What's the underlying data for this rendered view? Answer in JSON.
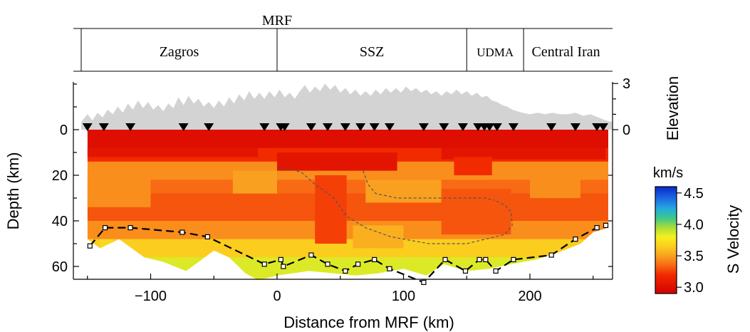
{
  "top_label": "MRF",
  "provinces": [
    {
      "name": "Zagros",
      "from": -150,
      "to": 0
    },
    {
      "name": "SSZ",
      "from": 0,
      "to": 150
    },
    {
      "name": "UDMA",
      "from": 150,
      "to": 195
    },
    {
      "name": "Central Iran",
      "from": 195,
      "to": 262
    }
  ],
  "chart_data": {
    "type": "heatmap",
    "xlabel": "Distance from MRF (km)",
    "ylabel": "Depth (km)",
    "right_label": "Elevation",
    "xlim": [
      -155,
      265
    ],
    "ylim": [
      70,
      -35
    ],
    "x_ticks": [
      {
        "v": -100,
        "label": "−100"
      },
      {
        "v": 0,
        "label": "0"
      },
      {
        "v": 100,
        "label": "100"
      },
      {
        "v": 200,
        "label": "200"
      }
    ],
    "y_ticks": [
      {
        "v": 0,
        "label": "0"
      },
      {
        "v": 20,
        "label": "20"
      },
      {
        "v": 40,
        "label": "40"
      },
      {
        "v": 60,
        "label": "60"
      }
    ],
    "elevation_ticks": [
      {
        "v": 3,
        "label": "3"
      },
      {
        "v": 0,
        "label": "0"
      }
    ],
    "colorbar": {
      "unit": "km/s",
      "label": "S Velocity",
      "range": [
        2.9,
        4.6
      ],
      "ticks": [
        {
          "v": 3.0,
          "label": "3.0"
        },
        {
          "v": 3.5,
          "label": "3.5"
        },
        {
          "v": 4.0,
          "label": "4.0"
        },
        {
          "v": 4.5,
          "label": "4.5"
        }
      ],
      "stops": [
        {
          "v": 2.9,
          "color": "#d40000"
        },
        {
          "v": 3.2,
          "color": "#f22a00"
        },
        {
          "v": 3.35,
          "color": "#f86a14"
        },
        {
          "v": 3.5,
          "color": "#f9a020"
        },
        {
          "v": 3.65,
          "color": "#fbcd1e"
        },
        {
          "v": 3.8,
          "color": "#f6f01e"
        },
        {
          "v": 3.95,
          "color": "#a8dc3a"
        },
        {
          "v": 4.1,
          "color": "#3cc88c"
        },
        {
          "v": 4.25,
          "color": "#24aadc"
        },
        {
          "v": 4.4,
          "color": "#1e6ee6"
        },
        {
          "v": 4.6,
          "color": "#0a28c8"
        }
      ]
    },
    "velocity_layers": [
      {
        "top": 0,
        "bottom": 8,
        "v": 3.0
      },
      {
        "top": 8,
        "bottom": 14,
        "v": 3.2
      },
      {
        "top": 14,
        "bottom": 22,
        "v": 3.45
      },
      {
        "top": 22,
        "bottom": 28,
        "v": 3.35
      },
      {
        "top": 28,
        "bottom": 40,
        "v": 3.3
      },
      {
        "top": 40,
        "bottom": 48,
        "v": 3.45
      },
      {
        "top": 48,
        "bottom": 56,
        "v": 3.65
      },
      {
        "top": 56,
        "bottom": 70,
        "v": 3.85
      }
    ],
    "velocity_patches": [
      {
        "x0": -150,
        "x1": -15,
        "top": 8,
        "bottom": 12,
        "v": 3.05
      },
      {
        "x0": 0,
        "x1": 95,
        "top": 10,
        "bottom": 18,
        "v": 3.05
      },
      {
        "x0": 130,
        "x1": 260,
        "top": 8,
        "bottom": 13,
        "v": 3.05
      },
      {
        "x0": -150,
        "x1": -100,
        "top": 20,
        "bottom": 34,
        "v": 3.45
      },
      {
        "x0": -35,
        "x1": 0,
        "top": 18,
        "bottom": 28,
        "v": 3.5
      },
      {
        "x0": 30,
        "x1": 55,
        "top": 20,
        "bottom": 50,
        "v": 3.25
      },
      {
        "x0": 70,
        "x1": 130,
        "top": 22,
        "bottom": 32,
        "v": 3.5
      },
      {
        "x0": 130,
        "x1": 185,
        "top": 26,
        "bottom": 46,
        "v": 3.3
      },
      {
        "x0": 140,
        "x1": 170,
        "top": 12,
        "bottom": 20,
        "v": 3.2
      },
      {
        "x0": 200,
        "x1": 240,
        "top": 20,
        "bottom": 30,
        "v": 3.45
      },
      {
        "x0": -140,
        "x1": -130,
        "top": 48,
        "bottom": 52,
        "v": 3.7
      },
      {
        "x0": 60,
        "x1": 100,
        "top": 42,
        "bottom": 52,
        "v": 3.55
      }
    ],
    "model_bottom": [
      {
        "x": -150,
        "y": 48
      },
      {
        "x": -140,
        "y": 52
      },
      {
        "x": -125,
        "y": 48
      },
      {
        "x": -105,
        "y": 56
      },
      {
        "x": -90,
        "y": 58
      },
      {
        "x": -72,
        "y": 62
      },
      {
        "x": -62,
        "y": 58
      },
      {
        "x": -50,
        "y": 53
      },
      {
        "x": -38,
        "y": 56
      },
      {
        "x": -25,
        "y": 63
      },
      {
        "x": -15,
        "y": 66
      },
      {
        "x": 0,
        "y": 64
      },
      {
        "x": 25,
        "y": 62
      },
      {
        "x": 45,
        "y": 63
      },
      {
        "x": 62,
        "y": 64
      },
      {
        "x": 80,
        "y": 63
      },
      {
        "x": 100,
        "y": 61
      },
      {
        "x": 118,
        "y": 64
      },
      {
        "x": 132,
        "y": 59
      },
      {
        "x": 150,
        "y": 62
      },
      {
        "x": 168,
        "y": 61
      },
      {
        "x": 185,
        "y": 59
      },
      {
        "x": 205,
        "y": 57
      },
      {
        "x": 222,
        "y": 54
      },
      {
        "x": 240,
        "y": 50
      },
      {
        "x": 250,
        "y": 45
      },
      {
        "x": 262,
        "y": 43
      }
    ],
    "moho": [
      {
        "x": -148,
        "y": 51
      },
      {
        "x": -136,
        "y": 43
      },
      {
        "x": -116,
        "y": 43
      },
      {
        "x": -75,
        "y": 45
      },
      {
        "x": -55,
        "y": 47
      },
      {
        "x": -10,
        "y": 59
      },
      {
        "x": 3,
        "y": 57
      },
      {
        "x": 5,
        "y": 60
      },
      {
        "x": 27,
        "y": 55
      },
      {
        "x": 40,
        "y": 59
      },
      {
        "x": 54,
        "y": 62
      },
      {
        "x": 64,
        "y": 59
      },
      {
        "x": 77,
        "y": 57
      },
      {
        "x": 89,
        "y": 61
      },
      {
        "x": 116,
        "y": 67
      },
      {
        "x": 133,
        "y": 57
      },
      {
        "x": 149,
        "y": 62
      },
      {
        "x": 160,
        "y": 57
      },
      {
        "x": 165,
        "y": 57
      },
      {
        "x": 173,
        "y": 62
      },
      {
        "x": 187,
        "y": 57
      },
      {
        "x": 217,
        "y": 55
      },
      {
        "x": 236,
        "y": 48
      },
      {
        "x": 253,
        "y": 43
      },
      {
        "x": 260,
        "y": 42
      }
    ],
    "anomaly_outline_1": [
      {
        "x": 0,
        "y": 17
      },
      {
        "x": 10,
        "y": 17
      },
      {
        "x": 20,
        "y": 19
      },
      {
        "x": 30,
        "y": 24
      },
      {
        "x": 45,
        "y": 30
      },
      {
        "x": 55,
        "y": 38
      },
      {
        "x": 70,
        "y": 43
      },
      {
        "x": 90,
        "y": 47
      },
      {
        "x": 120,
        "y": 50
      },
      {
        "x": 150,
        "y": 50
      },
      {
        "x": 180,
        "y": 46
      },
      {
        "x": 186,
        "y": 42
      },
      {
        "x": 185,
        "y": 36
      },
      {
        "x": 180,
        "y": 33
      },
      {
        "x": 172,
        "y": 31
      }
    ],
    "anomaly_outline_2": [
      {
        "x": 68,
        "y": 18
      },
      {
        "x": 72,
        "y": 24
      },
      {
        "x": 78,
        "y": 28
      },
      {
        "x": 95,
        "y": 30
      },
      {
        "x": 130,
        "y": 30
      },
      {
        "x": 165,
        "y": 30
      },
      {
        "x": 172,
        "y": 31
      }
    ],
    "elevation_profile": [
      {
        "x": -155,
        "y": 0.5
      },
      {
        "x": -150,
        "y": 1.0
      },
      {
        "x": -146,
        "y": 0.6
      },
      {
        "x": -142,
        "y": 1.1
      },
      {
        "x": -138,
        "y": 0.8
      },
      {
        "x": -134,
        "y": 1.3
      },
      {
        "x": -130,
        "y": 1.0
      },
      {
        "x": -126,
        "y": 1.5
      },
      {
        "x": -122,
        "y": 1.1
      },
      {
        "x": -118,
        "y": 1.7
      },
      {
        "x": -114,
        "y": 1.3
      },
      {
        "x": -110,
        "y": 1.9
      },
      {
        "x": -106,
        "y": 1.4
      },
      {
        "x": -102,
        "y": 1.8
      },
      {
        "x": -98,
        "y": 1.3
      },
      {
        "x": -94,
        "y": 1.6
      },
      {
        "x": -90,
        "y": 1.2
      },
      {
        "x": -86,
        "y": 1.7
      },
      {
        "x": -82,
        "y": 1.4
      },
      {
        "x": -78,
        "y": 2.1
      },
      {
        "x": -74,
        "y": 1.6
      },
      {
        "x": -70,
        "y": 2.2
      },
      {
        "x": -66,
        "y": 1.7
      },
      {
        "x": -62,
        "y": 2.0
      },
      {
        "x": -58,
        "y": 1.5
      },
      {
        "x": -54,
        "y": 1.8
      },
      {
        "x": -50,
        "y": 1.4
      },
      {
        "x": -46,
        "y": 1.9
      },
      {
        "x": -42,
        "y": 1.5
      },
      {
        "x": -38,
        "y": 2.1
      },
      {
        "x": -34,
        "y": 1.7
      },
      {
        "x": -30,
        "y": 2.3
      },
      {
        "x": -26,
        "y": 1.9
      },
      {
        "x": -22,
        "y": 2.5
      },
      {
        "x": -18,
        "y": 2.0
      },
      {
        "x": -14,
        "y": 2.4
      },
      {
        "x": -10,
        "y": 2.0
      },
      {
        "x": -6,
        "y": 2.5
      },
      {
        "x": -2,
        "y": 2.1
      },
      {
        "x": 2,
        "y": 2.6
      },
      {
        "x": 6,
        "y": 2.1
      },
      {
        "x": 10,
        "y": 2.4
      },
      {
        "x": 14,
        "y": 2.0
      },
      {
        "x": 18,
        "y": 2.5
      },
      {
        "x": 22,
        "y": 2.9
      },
      {
        "x": 26,
        "y": 2.4
      },
      {
        "x": 30,
        "y": 2.8
      },
      {
        "x": 34,
        "y": 2.5
      },
      {
        "x": 38,
        "y": 3.0
      },
      {
        "x": 42,
        "y": 2.6
      },
      {
        "x": 46,
        "y": 2.9
      },
      {
        "x": 50,
        "y": 2.4
      },
      {
        "x": 54,
        "y": 2.7
      },
      {
        "x": 58,
        "y": 2.3
      },
      {
        "x": 62,
        "y": 2.6
      },
      {
        "x": 66,
        "y": 2.2
      },
      {
        "x": 70,
        "y": 2.5
      },
      {
        "x": 74,
        "y": 2.2
      },
      {
        "x": 78,
        "y": 2.6
      },
      {
        "x": 82,
        "y": 2.3
      },
      {
        "x": 86,
        "y": 2.7
      },
      {
        "x": 90,
        "y": 2.4
      },
      {
        "x": 94,
        "y": 2.7
      },
      {
        "x": 98,
        "y": 2.4
      },
      {
        "x": 102,
        "y": 2.8
      },
      {
        "x": 106,
        "y": 2.5
      },
      {
        "x": 110,
        "y": 2.7
      },
      {
        "x": 114,
        "y": 2.4
      },
      {
        "x": 118,
        "y": 2.6
      },
      {
        "x": 122,
        "y": 2.3
      },
      {
        "x": 126,
        "y": 2.5
      },
      {
        "x": 130,
        "y": 2.2
      },
      {
        "x": 134,
        "y": 2.5
      },
      {
        "x": 138,
        "y": 2.3
      },
      {
        "x": 142,
        "y": 2.6
      },
      {
        "x": 146,
        "y": 2.3
      },
      {
        "x": 150,
        "y": 2.5
      },
      {
        "x": 154,
        "y": 2.2
      },
      {
        "x": 158,
        "y": 2.4
      },
      {
        "x": 162,
        "y": 2.1
      },
      {
        "x": 166,
        "y": 2.2
      },
      {
        "x": 170,
        "y": 1.9
      },
      {
        "x": 174,
        "y": 1.8
      },
      {
        "x": 178,
        "y": 1.6
      },
      {
        "x": 182,
        "y": 1.5
      },
      {
        "x": 186,
        "y": 1.3
      },
      {
        "x": 190,
        "y": 1.2
      },
      {
        "x": 194,
        "y": 1.1
      },
      {
        "x": 200,
        "y": 1.0
      },
      {
        "x": 206,
        "y": 1.1
      },
      {
        "x": 212,
        "y": 1.0
      },
      {
        "x": 218,
        "y": 1.1
      },
      {
        "x": 224,
        "y": 1.0
      },
      {
        "x": 230,
        "y": 1.0
      },
      {
        "x": 236,
        "y": 1.1
      },
      {
        "x": 242,
        "y": 0.9
      },
      {
        "x": 248,
        "y": 1.0
      },
      {
        "x": 254,
        "y": 0.8
      },
      {
        "x": 260,
        "y": 0.6
      },
      {
        "x": 265,
        "y": 0.5
      }
    ],
    "stations_x": [
      -150,
      -137,
      -116,
      -74,
      -54,
      -10,
      3,
      6,
      27,
      40,
      54,
      66,
      77,
      89,
      116,
      132,
      147,
      159,
      164,
      168,
      174,
      187,
      217,
      236,
      253,
      258
    ]
  }
}
